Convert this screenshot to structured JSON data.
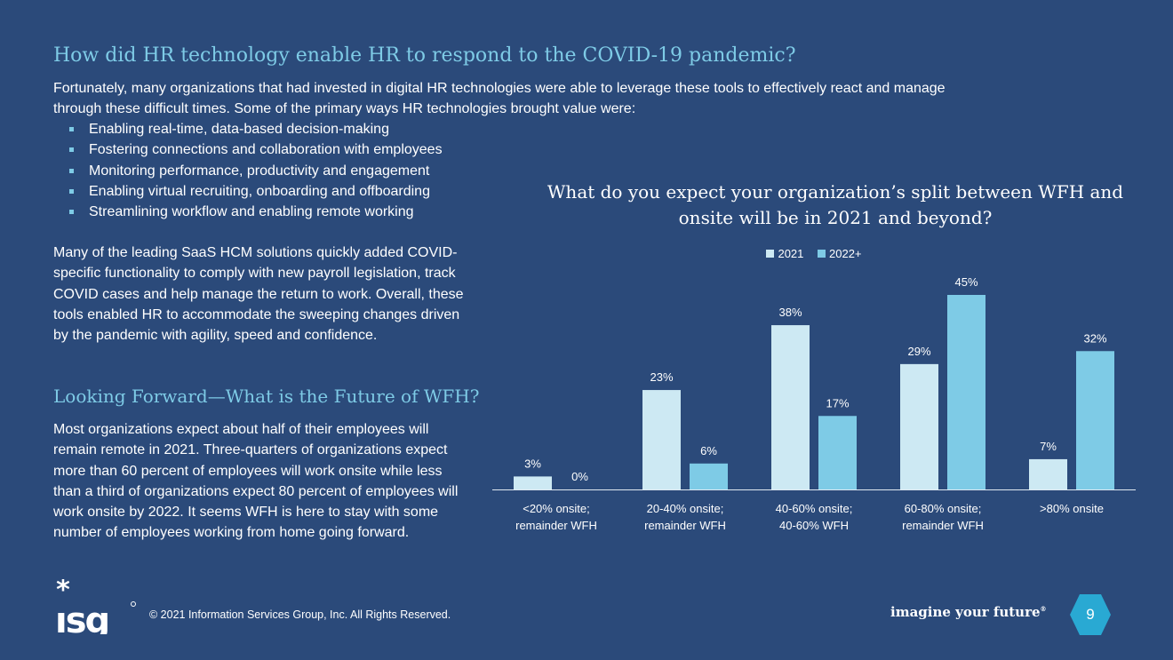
{
  "title": "How did HR technology enable HR to respond to the COVID-19 pandemic?",
  "intro": "Fortunately, many organizations that had invested in digital HR technologies were able to leverage these tools to effectively react and manage through these difficult times. Some of the primary ways HR technologies brought value were:",
  "bullets": [
    "Enabling real-time, data-based decision-making",
    "Fostering connections and collaboration with employees",
    "Monitoring performance, productivity and engagement",
    "Enabling virtual recruiting, onboarding and offboarding",
    "Streamlining workflow and enabling remote working"
  ],
  "saas_paragraph": "Many of the leading SaaS HCM solutions quickly added COVID-specific functionality to comply with new payroll legislation, track COVID cases and help manage the return to work. Overall, these tools enabled HR to accommodate the sweeping changes driven by the pandemic with agility, speed and confidence.",
  "looking_forward": {
    "title": "Looking Forward—What is the Future of WFH?",
    "text": "Most organizations expect about half of their employees will remain remote in 2021. Three-quarters of organizations expect more than 60 percent of employees will work onsite while less than a third of organizations expect 80 percent of employees will work onsite by 2022. It seems WFH is here to stay with some number of employees working from home going forward."
  },
  "chart_data": {
    "type": "bar",
    "title": "What do you expect your organization’s split between WFH and onsite will be in 2021 and beyond?",
    "categories": [
      "<20% onsite; remainder WFH",
      "20-40% onsite; remainder WFH",
      "40-60% onsite; 40-60% WFH",
      "60-80% onsite; remainder WFH",
      ">80% onsite"
    ],
    "series": [
      {
        "name": "2021",
        "values": [
          3,
          23,
          38,
          29,
          7
        ],
        "labels": [
          "3%",
          "23%",
          "38%",
          "29%",
          "7%"
        ],
        "color": "#cde9f3"
      },
      {
        "name": "2022+",
        "values": [
          0,
          6,
          17,
          45,
          32
        ],
        "labels": [
          "0%",
          "6%",
          "17%",
          "45%",
          "32%"
        ],
        "color": "#7ecbe6"
      }
    ],
    "ylim": [
      0,
      45
    ],
    "legend": "top-center",
    "grid": false
  },
  "footer": {
    "copyright": "© 2021 Information Services Group, Inc. All Rights Reserved.",
    "tagline": "imagine your future",
    "tagline_mark": "®",
    "page_number": "9",
    "logo_text": "ISG"
  },
  "colors": {
    "background": "#2b4a7a",
    "heading": "#7ecbe6",
    "accent": "#29a9d3"
  }
}
